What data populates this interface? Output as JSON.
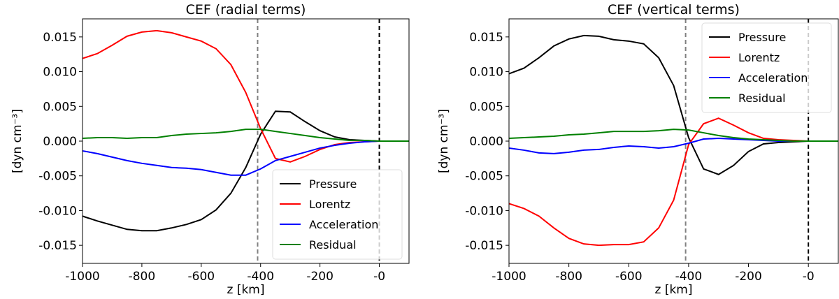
{
  "chart_data": [
    {
      "type": "line",
      "title": "CEF (radial terms)",
      "xlabel": "z [km]",
      "ylabel": "[dyn cm⁻³]",
      "x": [
        -1000,
        -950,
        -900,
        -850,
        -800,
        -750,
        -700,
        -650,
        -600,
        -550,
        -500,
        -450,
        -400,
        -350,
        -300,
        -250,
        -200,
        -150,
        -100,
        -50,
        0,
        50,
        100
      ],
      "series": [
        {
          "name": "Pressure",
          "color": "#000000",
          "values": [
            -0.0108,
            -0.0115,
            -0.0121,
            -0.0127,
            -0.0129,
            -0.0129,
            -0.0125,
            -0.012,
            -0.0113,
            -0.0099,
            -0.0075,
            -0.0038,
            0.001,
            0.0043,
            0.0042,
            0.0028,
            0.0015,
            0.0006,
            0.0002,
            0.0001,
            0,
            0,
            0
          ]
        },
        {
          "name": "Lorentz",
          "color": "#ff0000",
          "values": [
            0.0119,
            0.0126,
            0.0138,
            0.0151,
            0.0157,
            0.0159,
            0.0156,
            0.015,
            0.0144,
            0.0133,
            0.011,
            0.007,
            0.0018,
            -0.0025,
            -0.003,
            -0.0022,
            -0.0012,
            -0.0005,
            -0.0002,
            -0.0001,
            0,
            0,
            0
          ]
        },
        {
          "name": "Acceleration",
          "color": "#0000ff",
          "values": [
            -0.0014,
            -0.0018,
            -0.0023,
            -0.0028,
            -0.0032,
            -0.0035,
            -0.0038,
            -0.0039,
            -0.0041,
            -0.0045,
            -0.0049,
            -0.0049,
            -0.004,
            -0.0028,
            -0.0022,
            -0.0016,
            -0.001,
            -0.0006,
            -0.0003,
            -0.0001,
            0,
            0,
            0
          ]
        },
        {
          "name": "Residual",
          "color": "#008000",
          "values": [
            0.0004,
            0.0005,
            0.0005,
            0.0004,
            0.0005,
            0.0005,
            0.0008,
            0.001,
            0.0011,
            0.0012,
            0.0014,
            0.0017,
            0.0017,
            0.0014,
            0.0011,
            0.0008,
            0.0005,
            0.0003,
            0.0001,
            0.0001,
            0,
            0,
            0
          ]
        }
      ],
      "xlim": [
        -1000,
        100
      ],
      "xticks": [
        -1000,
        -800,
        -600,
        -400,
        -200,
        {
          "value": 0,
          "label": "-0"
        }
      ],
      "ylim": [
        -0.0176,
        0.0176
      ],
      "yticks": [
        -0.015,
        {
          "value": -0.01,
          "label": "-0.010"
        },
        -0.005,
        {
          "value": 0,
          "label": "0.000"
        },
        0.005,
        {
          "value": 0.01,
          "label": "0.010"
        },
        0.015
      ],
      "vlines": [
        {
          "x": -410,
          "color": "#808080"
        },
        {
          "x": 0,
          "color": "#000000"
        }
      ],
      "legend": "lower right"
    },
    {
      "type": "line",
      "title": "CEF (vertical terms)",
      "xlabel": "z [km]",
      "ylabel": "[dyn cm⁻³]",
      "x": [
        -1000,
        -950,
        -900,
        -850,
        -800,
        -750,
        -700,
        -650,
        -600,
        -550,
        -500,
        -450,
        -400,
        -350,
        -300,
        -250,
        -200,
        -150,
        -100,
        -50,
        0,
        50,
        100
      ],
      "series": [
        {
          "name": "Pressure",
          "color": "#000000",
          "values": [
            0.0097,
            0.0105,
            0.012,
            0.0137,
            0.0147,
            0.0152,
            0.0151,
            0.0146,
            0.0144,
            0.014,
            0.012,
            0.008,
            0.0005,
            -0.004,
            -0.0048,
            -0.0035,
            -0.0015,
            -0.0004,
            -0.0002,
            -0.0001,
            0,
            0,
            0
          ]
        },
        {
          "name": "Lorentz",
          "color": "#ff0000",
          "values": [
            -0.009,
            -0.0097,
            -0.0108,
            -0.0125,
            -0.014,
            -0.0148,
            -0.015,
            -0.0149,
            -0.0149,
            -0.0145,
            -0.0125,
            -0.0085,
            -0.0005,
            0.0025,
            0.0033,
            0.0023,
            0.0012,
            0.0004,
            0.0002,
            0.0001,
            0,
            0,
            0
          ]
        },
        {
          "name": "Acceleration",
          "color": "#0000ff",
          "values": [
            -0.001,
            -0.0013,
            -0.0017,
            -0.0018,
            -0.0016,
            -0.0013,
            -0.0012,
            -0.0009,
            -0.0007,
            -0.0008,
            -0.001,
            -0.0008,
            -0.0003,
            0.0003,
            0.0004,
            0.0003,
            0.0002,
            0.0001,
            0,
            0,
            0,
            0,
            0
          ]
        },
        {
          "name": "Residual",
          "color": "#008000",
          "values": [
            0.0004,
            0.0005,
            0.0006,
            0.0007,
            0.0009,
            0.001,
            0.0012,
            0.0014,
            0.0014,
            0.0014,
            0.0015,
            0.0017,
            0.0016,
            0.0012,
            0.0008,
            0.0005,
            0.0003,
            0.0002,
            0.0001,
            0,
            0,
            0,
            0
          ]
        }
      ],
      "xlim": [
        -1000,
        100
      ],
      "xticks": [
        -1000,
        -800,
        -600,
        -400,
        -200,
        {
          "value": 0,
          "label": "-0"
        }
      ],
      "ylim": [
        -0.0176,
        0.0176
      ],
      "yticks": [
        -0.015,
        {
          "value": -0.01,
          "label": "-0.010"
        },
        -0.005,
        {
          "value": 0,
          "label": "0.000"
        },
        0.005,
        {
          "value": 0.01,
          "label": "0.010"
        },
        0.015
      ],
      "vlines": [
        {
          "x": -410,
          "color": "#808080"
        },
        {
          "x": 0,
          "color": "#000000"
        }
      ],
      "legend": "upper right"
    }
  ]
}
